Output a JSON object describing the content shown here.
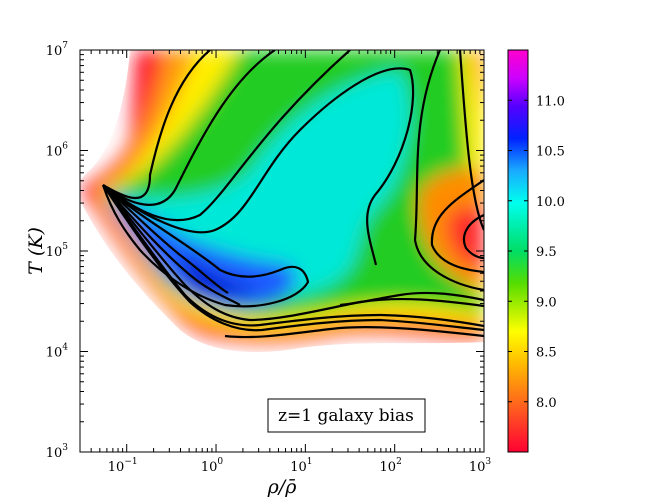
{
  "chart_data": {
    "type": "heatmap",
    "title": "",
    "xlabel": "ρ/ρ̄",
    "ylabel": "T (K)",
    "xscale": "log",
    "yscale": "log",
    "xlim": [
      0.03,
      1000
    ],
    "ylim": [
      1000,
      10000000
    ],
    "x_ticks": [
      {
        "base": "10",
        "exp": "−1",
        "value": 0.1
      },
      {
        "base": "10",
        "exp": "0",
        "value": 1
      },
      {
        "base": "10",
        "exp": "1",
        "value": 10
      },
      {
        "base": "10",
        "exp": "2",
        "value": 100
      },
      {
        "base": "10",
        "exp": "3",
        "value": 1000
      }
    ],
    "y_ticks": [
      {
        "base": "10",
        "exp": "3",
        "value": 1000
      },
      {
        "base": "10",
        "exp": "4",
        "value": 10000
      },
      {
        "base": "10",
        "exp": "5",
        "value": 100000
      },
      {
        "base": "10",
        "exp": "6",
        "value": 1000000
      },
      {
        "base": "10",
        "exp": "7",
        "value": 10000000
      }
    ],
    "colorbar": {
      "ticks": [
        "8.0",
        "8.5",
        "9.0",
        "9.5",
        "10.0",
        "10.5",
        "11.0"
      ],
      "range": [
        7.5,
        11.5
      ],
      "colormap": [
        "#ff0033",
        "#ffb000",
        "#ffff00",
        "#00cc00",
        "#00ffee",
        "#2090ff",
        "#0000ff",
        "#cc00ff",
        "#ff00cc"
      ]
    },
    "annotation": "z=1 galaxy bias",
    "grid": false,
    "contours": "black"
  }
}
